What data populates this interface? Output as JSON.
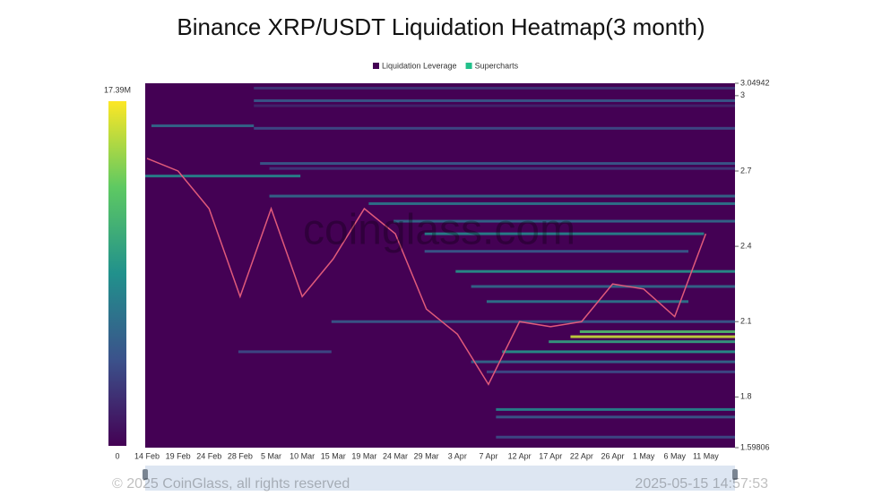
{
  "chart_data": {
    "type": "heatmap",
    "title": "Binance XRP/USDT Liquidation Heatmap(3 month)",
    "watermark": "coinglass.com",
    "footer": "© 2025 CoinGlass, all rights reserved",
    "timestamp": "2025-05-15 14:57:53",
    "series": [
      {
        "name": "Liquidation Leverage",
        "color": "#440154"
      },
      {
        "name": "Supercharts",
        "color": "#22c08a"
      }
    ],
    "categories": [
      "14 Feb",
      "19 Feb",
      "24 Feb",
      "28 Feb",
      "5 Mar",
      "10 Mar",
      "15 Mar",
      "19 Mar",
      "24 Mar",
      "29 Mar",
      "3 Apr",
      "7 Apr",
      "12 Apr",
      "17 Apr",
      "22 Apr",
      "26 Apr",
      "1 May",
      "6 May",
      "11 May"
    ],
    "price": [
      2.75,
      2.7,
      2.55,
      2.2,
      2.55,
      2.2,
      2.35,
      2.55,
      2.45,
      2.15,
      2.05,
      1.85,
      2.1,
      2.08,
      2.1,
      2.25,
      2.23,
      2.12,
      2.45
    ],
    "ylim": [
      1.59806,
      3.04942
    ],
    "yticks": [
      3.04942,
      3,
      2.7,
      2.4,
      2.1,
      1.8,
      1.59806
    ],
    "clim": [
      0,
      17390000
    ],
    "cticks": [
      {
        "value": 17390000,
        "label": "17.39M"
      },
      0
    ],
    "bands": [
      {
        "price": 3.03,
        "from": 3.5,
        "to": 19,
        "value": 3000000
      },
      {
        "price": 2.98,
        "from": 3.5,
        "to": 19,
        "value": 5000000
      },
      {
        "price": 2.96,
        "from": 3.5,
        "to": 19,
        "value": 2000000
      },
      {
        "price": 2.88,
        "from": 0.2,
        "to": 3.5,
        "value": 6000000
      },
      {
        "price": 2.87,
        "from": 3.5,
        "to": 19,
        "value": 4000000
      },
      {
        "price": 2.73,
        "from": 3.7,
        "to": 19,
        "value": 5000000
      },
      {
        "price": 2.71,
        "from": 4,
        "to": 19,
        "value": 3000000
      },
      {
        "price": 2.68,
        "from": 0,
        "to": 5,
        "value": 8000000
      },
      {
        "price": 2.6,
        "from": 4,
        "to": 19,
        "value": 6000000
      },
      {
        "price": 2.57,
        "from": 7.2,
        "to": 19,
        "value": 7000000
      },
      {
        "price": 2.5,
        "from": 8,
        "to": 19,
        "value": 6000000
      },
      {
        "price": 2.45,
        "from": 9,
        "to": 18,
        "value": 8000000
      },
      {
        "price": 2.38,
        "from": 9,
        "to": 17.5,
        "value": 5000000
      },
      {
        "price": 2.3,
        "from": 10,
        "to": 19,
        "value": 9000000
      },
      {
        "price": 2.24,
        "from": 10.5,
        "to": 19,
        "value": 6000000
      },
      {
        "price": 2.18,
        "from": 11,
        "to": 17.5,
        "value": 7000000
      },
      {
        "price": 2.1,
        "from": 6,
        "to": 19,
        "value": 5000000
      },
      {
        "price": 2.06,
        "from": 14,
        "to": 19,
        "value": 12000000
      },
      {
        "price": 2.04,
        "from": 13.7,
        "to": 19,
        "value": 16000000
      },
      {
        "price": 2.02,
        "from": 13,
        "to": 19,
        "value": 10000000
      },
      {
        "price": 1.98,
        "from": 11.5,
        "to": 19,
        "value": 9000000
      },
      {
        "price": 1.98,
        "from": 3,
        "to": 6,
        "value": 4000000
      },
      {
        "price": 1.94,
        "from": 10.5,
        "to": 19,
        "value": 6000000
      },
      {
        "price": 1.9,
        "from": 11,
        "to": 19,
        "value": 4000000
      },
      {
        "price": 1.75,
        "from": 11.3,
        "to": 19,
        "value": 8000000
      },
      {
        "price": 1.72,
        "from": 11.3,
        "to": 19,
        "value": 5000000
      },
      {
        "price": 1.64,
        "from": 11.3,
        "to": 19,
        "value": 4000000
      }
    ]
  }
}
